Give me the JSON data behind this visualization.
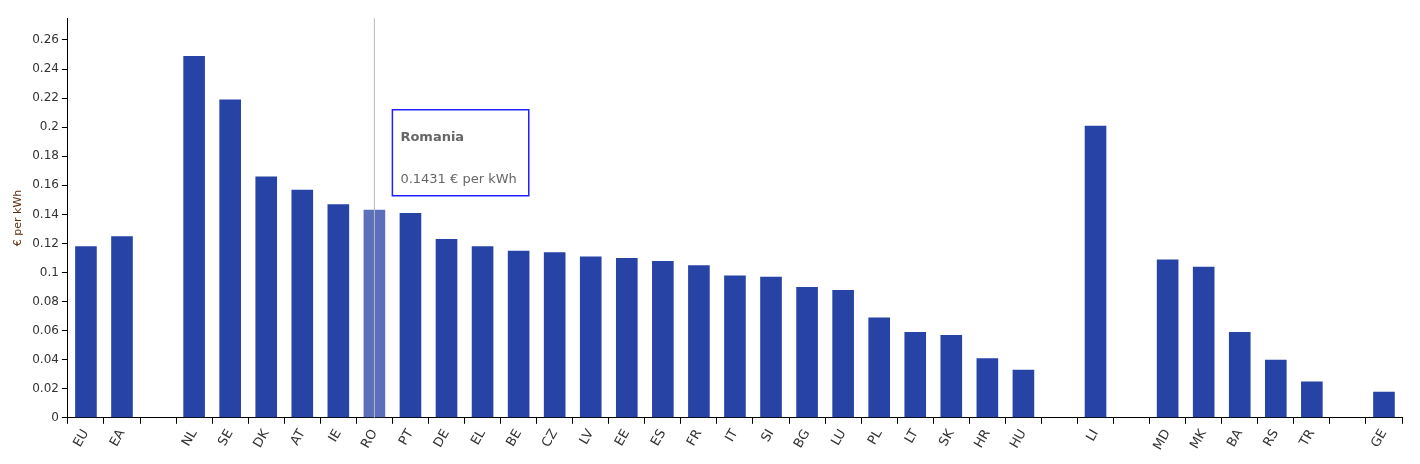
{
  "chart_data": {
    "type": "bar",
    "ylabel": "€ per kWh",
    "categories": [
      "EU",
      "EA",
      null,
      "NL",
      "SE",
      "DK",
      "AT",
      "IE",
      "RO",
      "PT",
      "DE",
      "EL",
      "BE",
      "CZ",
      "LV",
      "EE",
      "ES",
      "FR",
      "IT",
      "SI",
      "BG",
      "LU",
      "PL",
      "LT",
      "SK",
      "HR",
      "HU",
      null,
      "LI",
      null,
      "MD",
      "MK",
      "BA",
      "RS",
      "TR",
      null,
      "GE"
    ],
    "values": [
      0.118,
      0.125,
      null,
      0.249,
      0.219,
      0.166,
      0.157,
      0.147,
      0.1431,
      0.141,
      0.123,
      0.118,
      0.115,
      0.114,
      0.111,
      0.11,
      0.108,
      0.105,
      0.098,
      0.097,
      0.09,
      0.088,
      0.069,
      0.059,
      0.057,
      0.041,
      0.033,
      null,
      0.201,
      null,
      0.109,
      0.104,
      0.059,
      0.04,
      0.025,
      null,
      0.018
    ],
    "colors": [
      "#2743a6",
      "#2743a6",
      "#2743a6",
      "#2743a6",
      "#2743a6",
      "#2743a6",
      "#2743a6",
      "#2743a6",
      "#5b6fbb",
      "#2743a6",
      "#2743a6",
      "#2743a6",
      "#2743a6",
      "#2743a6",
      "#2743a6",
      "#2743a6",
      "#2743a6",
      "#2743a6",
      "#2743a6",
      "#2743a6",
      "#2743a6",
      "#2743a6",
      "#2743a6",
      "#2743a6",
      "#2743a6",
      "#2743a6",
      "#2743a6",
      "#2743a6",
      "#2743a6",
      "#2743a6",
      "#2743a6",
      "#2743a6",
      "#2743a6",
      "#2743a6",
      "#2743a6",
      "#2743a6",
      "#2743a6"
    ],
    "ylim": [
      0,
      0.275
    ],
    "yticks": [
      0,
      0.02,
      0.04,
      0.06,
      0.08,
      0.1,
      0.12,
      0.14,
      0.16,
      0.18,
      0.2,
      0.22,
      0.24,
      0.26
    ],
    "grid": false,
    "legend": false,
    "ref_lines": [
      {
        "axis": "x",
        "value": "RO",
        "color": "#bbbbbb"
      }
    ],
    "annotations": [
      "Romania",
      {
        "text": "0.1431 € per kWh",
        "x": "RO",
        "y": 0.1431
      }
    ]
  }
}
